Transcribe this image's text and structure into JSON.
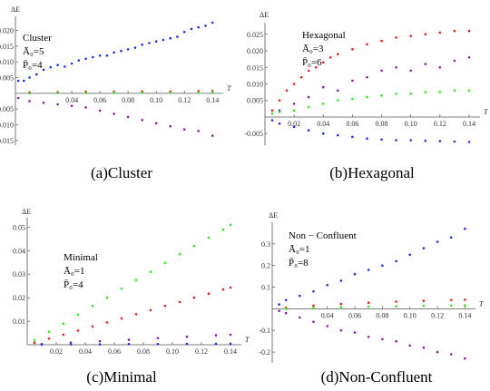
{
  "chart_data": [
    {
      "id": "cluster",
      "type": "scatter",
      "caption": "(a)Cluster",
      "ylabel": "ΔE",
      "xlabel": "T",
      "annotation": [
        "Cluster",
        "Ā₀=5",
        "P̄₀=4"
      ],
      "xlim": [
        0,
        0.145
      ],
      "ylim": [
        -0.0165,
        0.0245
      ],
      "xticks": [
        "0.04",
        "0.06",
        "0.08",
        "0.10",
        "0.12",
        "0.14"
      ],
      "xtickvals": [
        0.04,
        0.06,
        0.08,
        0.1,
        0.12,
        0.14
      ],
      "yticks": [
        "0.020",
        "0.015",
        "0.010",
        "0.005",
        "-0.005",
        "-0.010",
        "-0.015"
      ],
      "ytickvals": [
        0.02,
        0.015,
        0.01,
        0.005,
        -0.005,
        -0.01,
        -0.015
      ],
      "series": [
        {
          "color": "#1f2ee6",
          "values": [
            [
              0.002,
              0.004
            ],
            [
              0.006,
              0.004
            ],
            [
              0.01,
              0.005
            ],
            [
              0.015,
              0.006
            ],
            [
              0.02,
              0.0075
            ],
            [
              0.025,
              0.0083
            ],
            [
              0.03,
              0.009
            ],
            [
              0.035,
              0.0085
            ],
            [
              0.04,
              0.0095
            ],
            [
              0.045,
              0.0105
            ],
            [
              0.05,
              0.011
            ],
            [
              0.055,
              0.0115
            ],
            [
              0.06,
              0.012
            ],
            [
              0.065,
              0.012
            ],
            [
              0.07,
              0.013
            ],
            [
              0.075,
              0.0135
            ],
            [
              0.08,
              0.014
            ],
            [
              0.085,
              0.0145
            ],
            [
              0.09,
              0.0155
            ],
            [
              0.095,
              0.016
            ],
            [
              0.1,
              0.0165
            ],
            [
              0.105,
              0.017
            ],
            [
              0.11,
              0.0175
            ],
            [
              0.115,
              0.018
            ],
            [
              0.12,
              0.0195
            ],
            [
              0.125,
              0.0205
            ],
            [
              0.13,
              0.021
            ],
            [
              0.135,
              0.0215
            ],
            [
              0.14,
              0.0225
            ]
          ]
        },
        {
          "color": "#e61c1c",
          "values": [
            [
              0.01,
              0.0003
            ],
            [
              0.03,
              0.0004
            ],
            [
              0.05,
              0.0005
            ],
            [
              0.07,
              0.0005
            ],
            [
              0.09,
              0.0006
            ],
            [
              0.11,
              0.0006
            ],
            [
              0.13,
              0.0007
            ],
            [
              0.14,
              0.0007
            ]
          ]
        },
        {
          "color": "#2ee61c",
          "values": [
            [
              0.01,
              0.0
            ],
            [
              0.03,
              0.0001
            ],
            [
              0.05,
              0.0001
            ],
            [
              0.07,
              0.0002
            ],
            [
              0.09,
              0.0002
            ],
            [
              0.11,
              0.0002
            ],
            [
              0.13,
              0.0002
            ],
            [
              0.14,
              0.0003
            ]
          ]
        },
        {
          "color": "#8a1ea0",
          "values": [
            [
              0.002,
              -0.0015
            ],
            [
              0.01,
              -0.0025
            ],
            [
              0.02,
              -0.003
            ],
            [
              0.03,
              -0.0035
            ],
            [
              0.04,
              -0.004
            ],
            [
              0.05,
              -0.0045
            ],
            [
              0.06,
              -0.0055
            ],
            [
              0.07,
              -0.0065
            ],
            [
              0.08,
              -0.0075
            ],
            [
              0.09,
              -0.0085
            ],
            [
              0.1,
              -0.0095
            ],
            [
              0.11,
              -0.0105
            ],
            [
              0.12,
              -0.0115
            ],
            [
              0.13,
              -0.012
            ],
            [
              0.14,
              -0.0135
            ]
          ]
        }
      ]
    },
    {
      "id": "hexagonal",
      "type": "scatter",
      "caption": "(b)Hexagonal",
      "ylabel": "ΔE",
      "xlabel": "T",
      "annotation": [
        "Hexagonal",
        "Ā₀=3",
        "P̄₀=6"
      ],
      "xlim": [
        0,
        0.145
      ],
      "ylim": [
        -0.0085,
        0.0285
      ],
      "xticks": [
        "0.02",
        "0.04",
        "0.06",
        "0.08",
        "0.10",
        "0.12",
        "0.14"
      ],
      "xtickvals": [
        0.02,
        0.04,
        0.06,
        0.08,
        0.1,
        0.12,
        0.14
      ],
      "yticks": [
        "0.025",
        "0.020",
        "0.015",
        "0.010",
        "0.005",
        "-0.005"
      ],
      "ytickvals": [
        0.025,
        0.02,
        0.015,
        0.01,
        0.005,
        -0.005
      ],
      "series": [
        {
          "color": "#e61c1c",
          "values": [
            [
              0.005,
              0.002
            ],
            [
              0.01,
              0.005
            ],
            [
              0.015,
              0.008
            ],
            [
              0.02,
              0.01
            ],
            [
              0.025,
              0.012
            ],
            [
              0.03,
              0.014
            ],
            [
              0.035,
              0.015
            ],
            [
              0.04,
              0.0165
            ],
            [
              0.045,
              0.018
            ],
            [
              0.05,
              0.019
            ],
            [
              0.06,
              0.0205
            ],
            [
              0.07,
              0.022
            ],
            [
              0.08,
              0.023
            ],
            [
              0.09,
              0.024
            ],
            [
              0.1,
              0.0245
            ],
            [
              0.11,
              0.025
            ],
            [
              0.12,
              0.0255
            ],
            [
              0.13,
              0.026
            ],
            [
              0.14,
              0.026
            ]
          ]
        },
        {
          "color": "#8a1ea0",
          "values": [
            [
              0.01,
              0.002
            ],
            [
              0.02,
              0.004
            ],
            [
              0.03,
              0.006
            ],
            [
              0.04,
              0.009
            ],
            [
              0.05,
              0.008
            ],
            [
              0.06,
              0.011
            ],
            [
              0.07,
              0.012
            ],
            [
              0.08,
              0.014
            ],
            [
              0.09,
              0.015
            ],
            [
              0.1,
              0.014
            ],
            [
              0.11,
              0.016
            ],
            [
              0.12,
              0.015
            ],
            [
              0.13,
              0.017
            ],
            [
              0.14,
              0.018
            ]
          ]
        },
        {
          "color": "#2ee61c",
          "values": [
            [
              0.005,
              0.001
            ],
            [
              0.01,
              0.0015
            ],
            [
              0.02,
              0.002
            ],
            [
              0.03,
              0.003
            ],
            [
              0.04,
              0.004
            ],
            [
              0.05,
              0.005
            ],
            [
              0.06,
              0.0055
            ],
            [
              0.07,
              0.006
            ],
            [
              0.08,
              0.0065
            ],
            [
              0.09,
              0.007
            ],
            [
              0.1,
              0.007
            ],
            [
              0.11,
              0.0075
            ],
            [
              0.12,
              0.0075
            ],
            [
              0.13,
              0.008
            ],
            [
              0.14,
              0.008
            ]
          ]
        },
        {
          "color": "#1f2ee6",
          "values": [
            [
              0.005,
              -0.001
            ],
            [
              0.01,
              -0.002
            ],
            [
              0.02,
              -0.003
            ],
            [
              0.03,
              -0.004
            ],
            [
              0.04,
              -0.005
            ],
            [
              0.05,
              -0.0055
            ],
            [
              0.06,
              -0.006
            ],
            [
              0.07,
              -0.0065
            ],
            [
              0.08,
              -0.0068
            ],
            [
              0.09,
              -0.007
            ],
            [
              0.1,
              -0.007
            ],
            [
              0.11,
              -0.0072
            ],
            [
              0.12,
              -0.0073
            ],
            [
              0.13,
              -0.0074
            ],
            [
              0.14,
              -0.0075
            ]
          ]
        }
      ]
    },
    {
      "id": "minimal",
      "type": "scatter",
      "caption": "(c)Minimal",
      "ylabel": "ΔE",
      "xlabel": "T",
      "annotation": [
        "Minimal",
        "Ā₀=1",
        "P̄₀=4"
      ],
      "xlim": [
        0,
        0.145
      ],
      "ylim": [
        0,
        0.054
      ],
      "xticks": [
        "0.02",
        "0.04",
        "0.06",
        "0.08",
        "0.10",
        "0.12",
        "0.14"
      ],
      "xtickvals": [
        0.02,
        0.04,
        0.06,
        0.08,
        0.1,
        0.12,
        0.14
      ],
      "yticks": [
        "0.05",
        "0.04",
        "0.03",
        "0.02",
        "0.01"
      ],
      "ytickvals": [
        0.05,
        0.04,
        0.03,
        0.02,
        0.01
      ],
      "series": [
        {
          "color": "#2ee61c",
          "values": [
            [
              0.005,
              0.0018
            ],
            [
              0.015,
              0.0055
            ],
            [
              0.025,
              0.009
            ],
            [
              0.035,
              0.0128
            ],
            [
              0.045,
              0.0165
            ],
            [
              0.055,
              0.02
            ],
            [
              0.065,
              0.0238
            ],
            [
              0.075,
              0.0275
            ],
            [
              0.085,
              0.031
            ],
            [
              0.095,
              0.0348
            ],
            [
              0.105,
              0.0385
            ],
            [
              0.115,
              0.042
            ],
            [
              0.125,
              0.0455
            ],
            [
              0.135,
              0.049
            ],
            [
              0.14,
              0.051
            ]
          ]
        },
        {
          "color": "#e61c1c",
          "values": [
            [
              0.005,
              0.0008
            ],
            [
              0.015,
              0.0026
            ],
            [
              0.025,
              0.0043
            ],
            [
              0.035,
              0.006
            ],
            [
              0.045,
              0.0078
            ],
            [
              0.055,
              0.0095
            ],
            [
              0.065,
              0.0112
            ],
            [
              0.075,
              0.013
            ],
            [
              0.085,
              0.0147
            ],
            [
              0.095,
              0.0165
            ],
            [
              0.105,
              0.0182
            ],
            [
              0.115,
              0.02
            ],
            [
              0.125,
              0.0217
            ],
            [
              0.135,
              0.0235
            ],
            [
              0.14,
              0.0243
            ]
          ]
        },
        {
          "color": "#8a1ea0",
          "values": [
            [
              0.01,
              0.0003
            ],
            [
              0.03,
              0.0009
            ],
            [
              0.05,
              0.0015
            ],
            [
              0.07,
              0.0021
            ],
            [
              0.09,
              0.0028
            ],
            [
              0.11,
              0.0034
            ],
            [
              0.13,
              0.004
            ],
            [
              0.14,
              0.0043
            ]
          ]
        },
        {
          "color": "#1f2ee6",
          "values": [
            [
              0.01,
              0.0001
            ],
            [
              0.03,
              0.0002
            ],
            [
              0.05,
              0.0002
            ],
            [
              0.07,
              0.0003
            ],
            [
              0.09,
              0.0003
            ],
            [
              0.11,
              0.0004
            ],
            [
              0.13,
              0.0004
            ],
            [
              0.14,
              0.0004
            ]
          ]
        }
      ]
    },
    {
      "id": "nonconfluent",
      "type": "scatter",
      "caption": "(d)Non-Confluent",
      "ylabel": "ΔE",
      "xlabel": "T",
      "annotation": [
        "Non − Confluent",
        "Ā₀=1",
        "P̄₀=8"
      ],
      "xlim": [
        0,
        0.145
      ],
      "ylim": [
        -0.25,
        0.4
      ],
      "xticks": [
        "0.04",
        "0.06",
        "0.08",
        "0.10",
        "0.12",
        "0.14"
      ],
      "xtickvals": [
        0.04,
        0.06,
        0.08,
        0.1,
        0.12,
        0.14
      ],
      "yticks": [
        "0.3",
        "0.2",
        "0.1",
        "-0.1",
        "-0.2"
      ],
      "ytickvals": [
        0.3,
        0.2,
        0.1,
        -0.1,
        -0.2
      ],
      "series": [
        {
          "color": "#1f2ee6",
          "values": [
            [
              0.005,
              0.02
            ],
            [
              0.01,
              0.04
            ],
            [
              0.02,
              0.06
            ],
            [
              0.03,
              0.08
            ],
            [
              0.04,
              0.11
            ],
            [
              0.05,
              0.13
            ],
            [
              0.06,
              0.16
            ],
            [
              0.07,
              0.18
            ],
            [
              0.08,
              0.2
            ],
            [
              0.09,
              0.22
            ],
            [
              0.1,
              0.25
            ],
            [
              0.11,
              0.28
            ],
            [
              0.12,
              0.31
            ],
            [
              0.13,
              0.33
            ],
            [
              0.14,
              0.37
            ]
          ]
        },
        {
          "color": "#e61c1c",
          "values": [
            [
              0.01,
              0.005
            ],
            [
              0.03,
              0.015
            ],
            [
              0.05,
              0.022
            ],
            [
              0.07,
              0.028
            ],
            [
              0.09,
              0.033
            ],
            [
              0.11,
              0.037
            ],
            [
              0.13,
              0.04
            ],
            [
              0.14,
              0.042
            ]
          ]
        },
        {
          "color": "#2ee61c",
          "values": [
            [
              0.01,
              0.0
            ],
            [
              0.03,
              0.005
            ],
            [
              0.05,
              0.008
            ],
            [
              0.07,
              0.01
            ],
            [
              0.09,
              0.012
            ],
            [
              0.11,
              0.014
            ],
            [
              0.13,
              0.015
            ],
            [
              0.14,
              0.016
            ]
          ]
        },
        {
          "color": "#8a1ea0",
          "values": [
            [
              0.005,
              -0.01
            ],
            [
              0.01,
              -0.02
            ],
            [
              0.02,
              -0.04
            ],
            [
              0.03,
              -0.06
            ],
            [
              0.04,
              -0.08
            ],
            [
              0.05,
              -0.1
            ],
            [
              0.06,
              -0.11
            ],
            [
              0.07,
              -0.13
            ],
            [
              0.08,
              -0.14
            ],
            [
              0.09,
              -0.15
            ],
            [
              0.1,
              -0.17
            ],
            [
              0.11,
              -0.18
            ],
            [
              0.12,
              -0.2
            ],
            [
              0.13,
              -0.21
            ],
            [
              0.14,
              -0.23
            ]
          ]
        }
      ]
    }
  ]
}
